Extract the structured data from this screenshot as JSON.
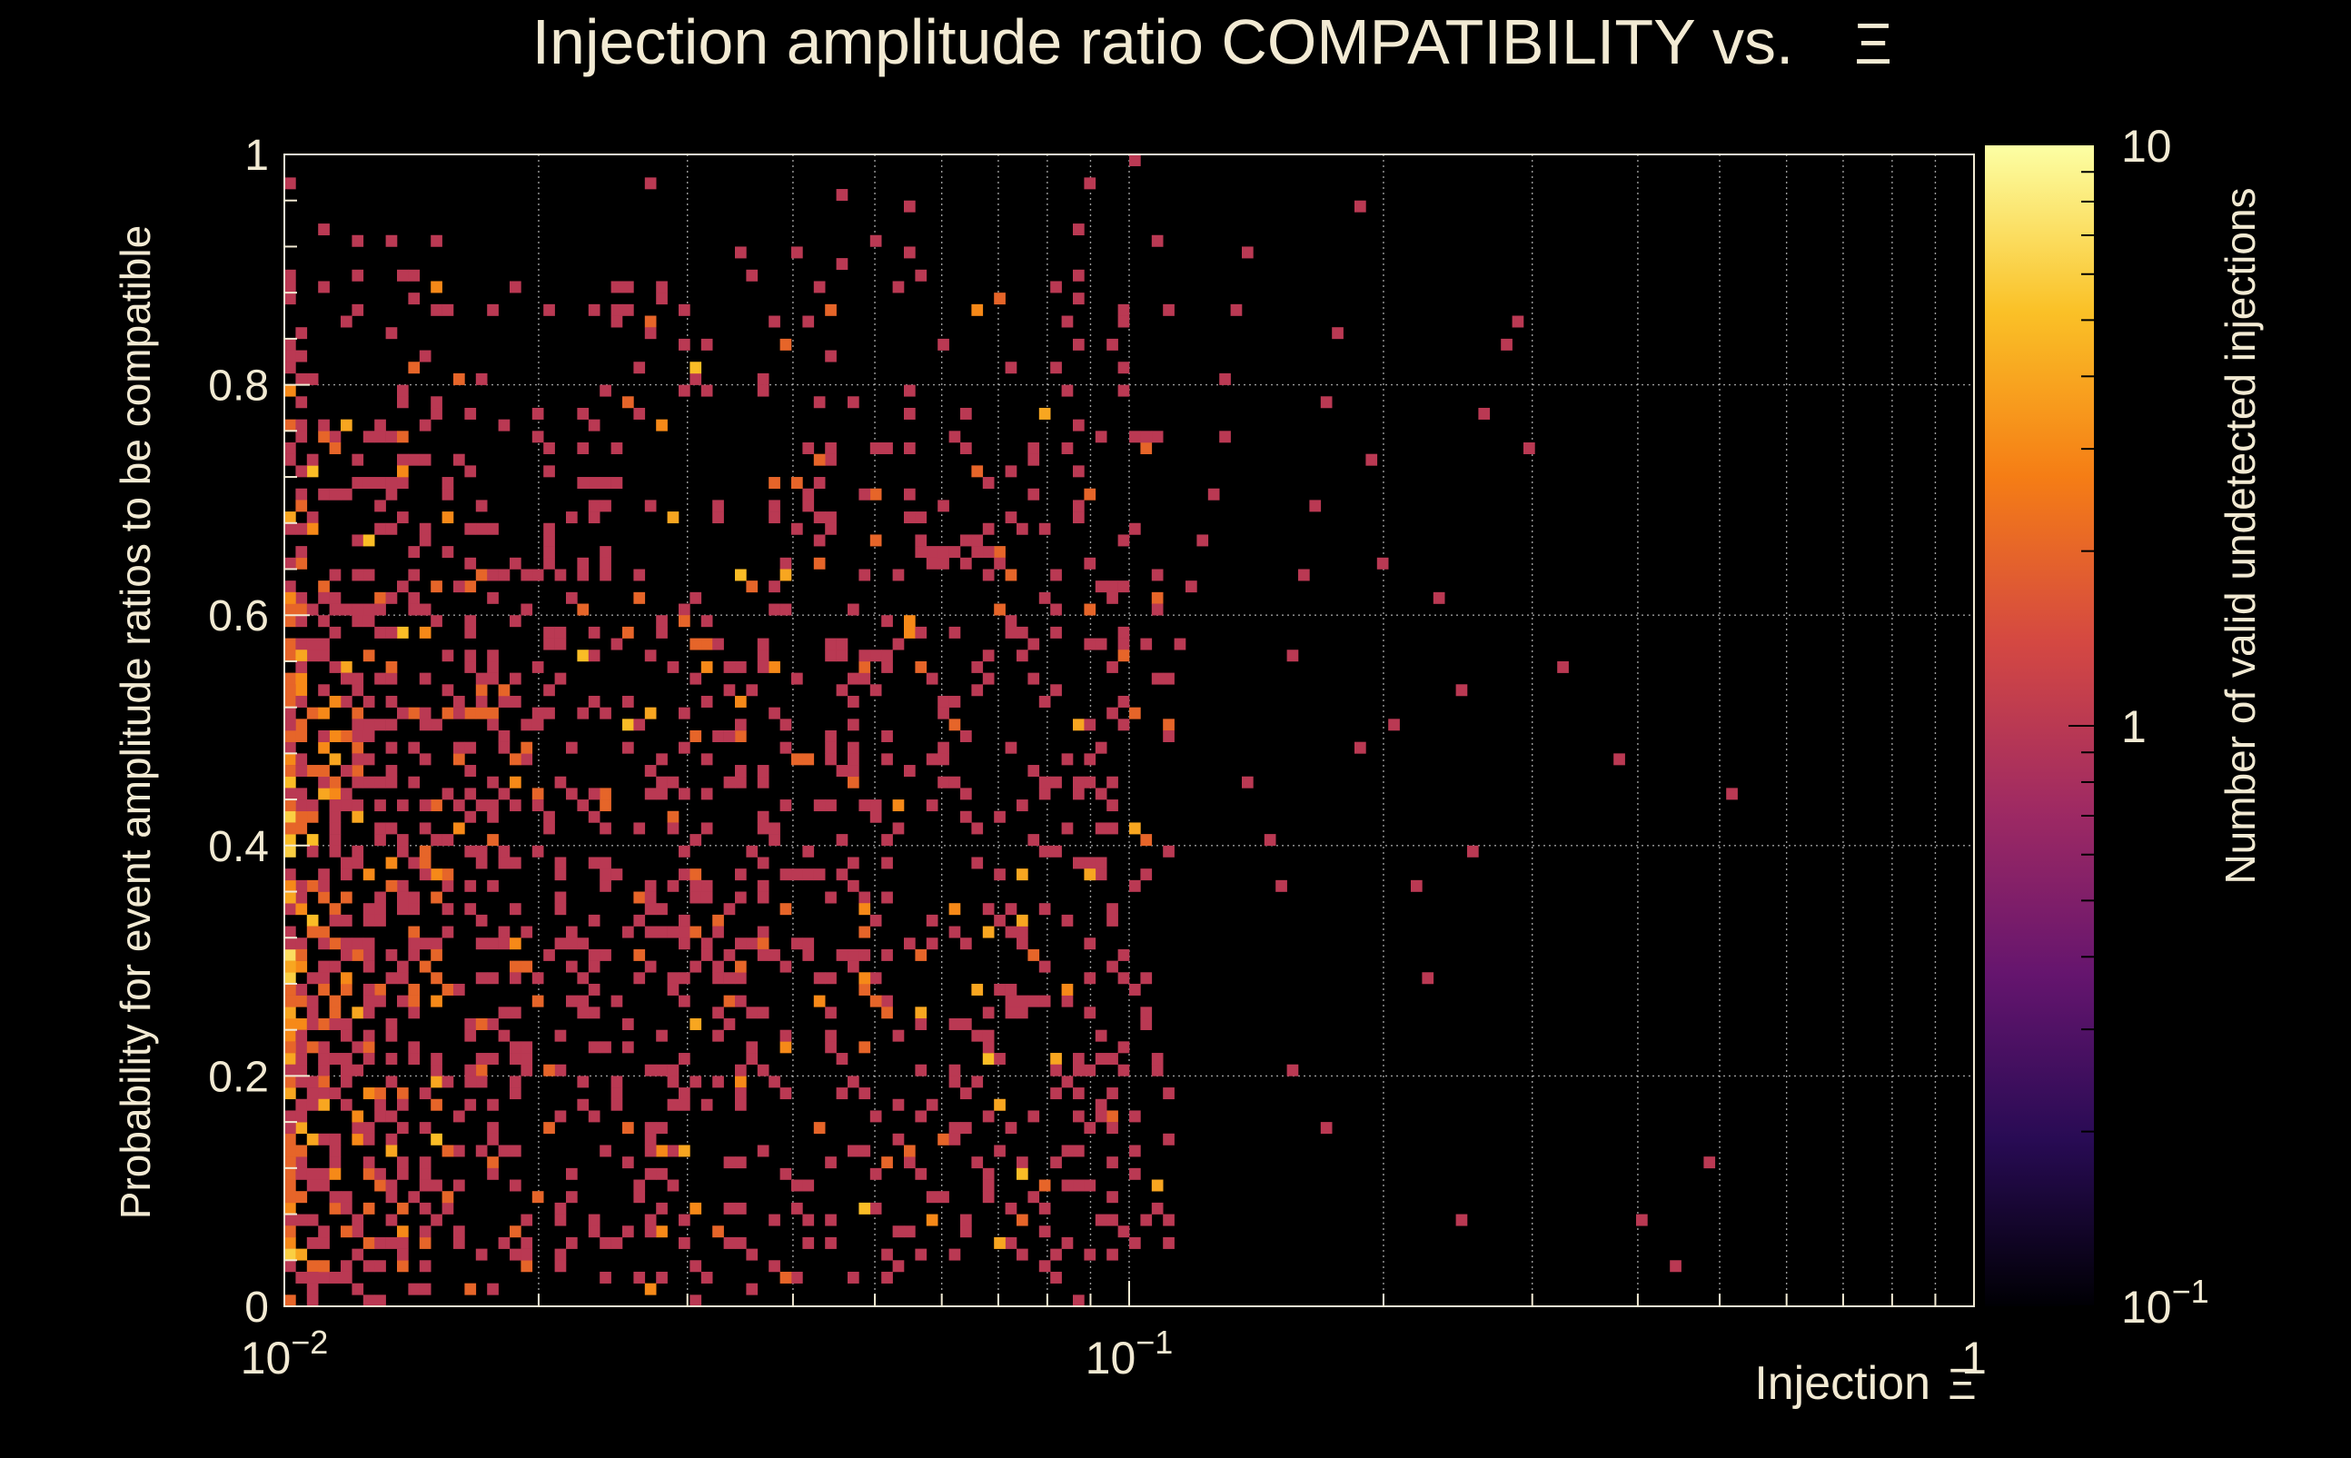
{
  "chart_data": {
    "type": "heatmap",
    "title": "Injection amplitude ratio COMPATIBILITY vs.",
    "title_symbol": "Ξ",
    "xlabel": "Injection",
    "xlabel_symbol": "Ξ",
    "ylabel": "Probability for event amplitude ratios to be compatible",
    "zlabel": "Number of valid undetected injections",
    "x_scale": "log",
    "xlim": [
      0.01,
      1
    ],
    "ylim": [
      0,
      1
    ],
    "z_scale": "log",
    "zlim": [
      0.1,
      10
    ],
    "x_ticks": [
      {
        "base": "10",
        "exp": "−2"
      },
      {
        "base": "10",
        "exp": "−1"
      },
      {
        "base": "1",
        "exp": ""
      }
    ],
    "y_ticks": [
      "0",
      "0.2",
      "0.4",
      "0.6",
      "0.8",
      "1"
    ],
    "z_ticks": [
      {
        "base": "10",
        "exp": "−1"
      },
      {
        "base": "1",
        "exp": ""
      },
      {
        "base": "10",
        "exp": ""
      }
    ],
    "colormap": [
      "#000004",
      "#280b54",
      "#65156e",
      "#9f2a63",
      "#d44842",
      "#f57d15",
      "#fac127",
      "#fcffa4"
    ],
    "grid": true,
    "bins": {
      "nx": 150,
      "ny": 100
    },
    "cells_description": "Sparse 2D histogram of injection counts (values 1–10); densest at low Ξ (0.01–0.1) with broad probability spread, thinning toward Ξ > 0.2.",
    "points": [
      [
        0.0102,
        0.05
      ],
      [
        0.0105,
        0.12
      ],
      [
        0.0108,
        0.18
      ],
      [
        0.0112,
        0.22
      ],
      [
        0.0115,
        0.25
      ],
      [
        0.011,
        0.28
      ],
      [
        0.0104,
        0.31
      ],
      [
        0.0107,
        0.33
      ],
      [
        0.0113,
        0.35
      ],
      [
        0.0118,
        0.38
      ],
      [
        0.0103,
        0.4
      ],
      [
        0.0109,
        0.42
      ],
      [
        0.0116,
        0.44
      ],
      [
        0.0121,
        0.46
      ],
      [
        0.0126,
        0.5
      ],
      [
        0.0106,
        0.53
      ],
      [
        0.0111,
        0.57
      ],
      [
        0.0119,
        0.6
      ],
      [
        0.0124,
        0.63
      ],
      [
        0.0101,
        0.67
      ],
      [
        0.0114,
        0.7
      ],
      [
        0.0129,
        0.75
      ],
      [
        0.0108,
        0.8
      ],
      [
        0.0117,
        0.85
      ],
      [
        0.0122,
        0.89
      ],
      [
        0.0102,
        0.97
      ],
      [
        0.0135,
        0.92
      ],
      [
        0.0141,
        0.87
      ],
      [
        0.0148,
        0.82
      ],
      [
        0.0155,
        0.65
      ],
      [
        0.0132,
        0.3
      ],
      [
        0.0138,
        0.26
      ],
      [
        0.0144,
        0.21
      ],
      [
        0.0151,
        0.17
      ],
      [
        0.0159,
        0.13
      ],
      [
        0.0166,
        0.36
      ],
      [
        0.0172,
        0.33
      ],
      [
        0.0178,
        0.4
      ],
      [
        0.0185,
        0.43
      ],
      [
        0.0192,
        0.47
      ],
      [
        0.0136,
        0.34
      ],
      [
        0.0143,
        0.38
      ],
      [
        0.0149,
        0.31
      ],
      [
        0.0157,
        0.27
      ],
      [
        0.0164,
        0.24
      ],
      [
        0.0171,
        0.2
      ],
      [
        0.0177,
        0.55
      ],
      [
        0.0184,
        0.52
      ],
      [
        0.0191,
        0.48
      ],
      [
        0.0198,
        0.44
      ],
      [
        0.0205,
        0.41
      ],
      [
        0.0212,
        0.37
      ],
      [
        0.0219,
        0.32
      ],
      [
        0.0227,
        0.29
      ],
      [
        0.0235,
        0.25
      ],
      [
        0.0243,
        0.22
      ],
      [
        0.0251,
        0.18
      ],
      [
        0.0259,
        0.15
      ],
      [
        0.0268,
        0.11
      ],
      [
        0.0277,
        0.08
      ],
      [
        0.0208,
        0.58
      ],
      [
        0.0216,
        0.61
      ],
      [
        0.0224,
        0.64
      ],
      [
        0.0232,
        0.68
      ],
      [
        0.0241,
        0.71
      ],
      [
        0.0249,
        0.74
      ],
      [
        0.0258,
        0.78
      ],
      [
        0.0266,
        0.81
      ],
      [
        0.0275,
        0.85
      ],
      [
        0.0284,
        0.88
      ],
      [
        0.0292,
        0.42
      ],
      [
        0.0301,
        0.39
      ],
      [
        0.031,
        0.35
      ],
      [
        0.032,
        0.31
      ],
      [
        0.033,
        0.28
      ],
      [
        0.034,
        0.45
      ],
      [
        0.035,
        0.49
      ],
      [
        0.036,
        0.53
      ],
      [
        0.037,
        0.57
      ],
      [
        0.038,
        0.6
      ],
      [
        0.039,
        0.64
      ],
      [
        0.04,
        0.67
      ],
      [
        0.041,
        0.71
      ],
      [
        0.042,
        0.74
      ],
      [
        0.043,
        0.78
      ],
      [
        0.044,
        0.82
      ],
      [
        0.045,
        0.86
      ],
      [
        0.046,
        0.9
      ],
      [
        0.047,
        0.38
      ],
      [
        0.048,
        0.35
      ],
      [
        0.049,
        0.32
      ],
      [
        0.05,
        0.29
      ],
      [
        0.052,
        0.26
      ],
      [
        0.054,
        0.23
      ],
      [
        0.056,
        0.2
      ],
      [
        0.058,
        0.17
      ],
      [
        0.06,
        0.14
      ],
      [
        0.062,
        0.45
      ],
      [
        0.064,
        0.49
      ],
      [
        0.066,
        0.53
      ],
      [
        0.068,
        0.56
      ],
      [
        0.07,
        0.6
      ],
      [
        0.072,
        0.63
      ],
      [
        0.074,
        0.67
      ],
      [
        0.076,
        0.7
      ],
      [
        0.078,
        0.74
      ],
      [
        0.08,
        0.77
      ],
      [
        0.082,
        0.81
      ],
      [
        0.084,
        0.85
      ],
      [
        0.086,
        0.89
      ],
      [
        0.088,
        0.93
      ],
      [
        0.09,
        0.97
      ],
      [
        0.092,
        0.41
      ],
      [
        0.094,
        0.37
      ],
      [
        0.096,
        0.34
      ],
      [
        0.098,
        0.3
      ],
      [
        0.101,
        0.27
      ],
      [
        0.104,
        0.24
      ],
      [
        0.107,
        0.2
      ],
      [
        0.11,
        0.5
      ],
      [
        0.113,
        0.54
      ],
      [
        0.116,
        0.58
      ],
      [
        0.119,
        0.62
      ],
      [
        0.122,
        0.66
      ],
      [
        0.125,
        0.7
      ],
      [
        0.128,
        0.75
      ],
      [
        0.131,
        0.8
      ],
      [
        0.134,
        0.86
      ],
      [
        0.137,
        0.91
      ],
      [
        0.14,
        0.45
      ],
      [
        0.145,
        0.4
      ],
      [
        0.15,
        0.36
      ],
      [
        0.155,
        0.56
      ],
      [
        0.16,
        0.63
      ],
      [
        0.166,
        0.69
      ],
      [
        0.172,
        0.78
      ],
      [
        0.178,
        0.84
      ],
      [
        0.185,
        0.95
      ],
      [
        0.192,
        0.73
      ],
      [
        0.2,
        0.64
      ],
      [
        0.208,
        0.5
      ],
      [
        0.216,
        0.36
      ],
      [
        0.225,
        0.28
      ],
      [
        0.235,
        0.61
      ],
      [
        0.245,
        0.53
      ],
      [
        0.255,
        0.39
      ],
      [
        0.266,
        0.77
      ],
      [
        0.278,
        0.83
      ],
      [
        0.29,
        0.85
      ],
      [
        0.3,
        0.74
      ],
      [
        0.33,
        0.55
      ],
      [
        0.375,
        0.47
      ],
      [
        0.41,
        0.07
      ],
      [
        0.48,
        0.12
      ],
      [
        0.52,
        0.44
      ],
      [
        0.45,
        0.03
      ],
      [
        0.245,
        0.07
      ],
      [
        0.19,
        0.48
      ],
      [
        0.17,
        0.15
      ],
      [
        0.155,
        0.2
      ],
      [
        0.0635,
        0.06
      ],
      [
        0.0705,
        0.13
      ],
      [
        0.0785,
        0.1
      ],
      [
        0.0865,
        0.18
      ],
      [
        0.0945,
        0.09
      ],
      [
        0.112,
        0.05
      ],
      [
        0.0565,
        0.04
      ],
      [
        0.0615,
        0.32
      ],
      [
        0.0715,
        0.26
      ],
      [
        0.0805,
        0.34
      ],
      [
        0.0745,
        0.43
      ],
      [
        0.0795,
        0.52
      ],
      [
        0.0845,
        0.47
      ],
      [
        0.0905,
        0.58
      ],
      [
        0.0965,
        0.62
      ],
      [
        0.0655,
        0.72
      ],
      [
        0.0595,
        0.83
      ],
      [
        0.0535,
        0.88
      ],
      [
        0.0505,
        0.92
      ],
      [
        0.0455,
        0.96
      ]
    ]
  }
}
